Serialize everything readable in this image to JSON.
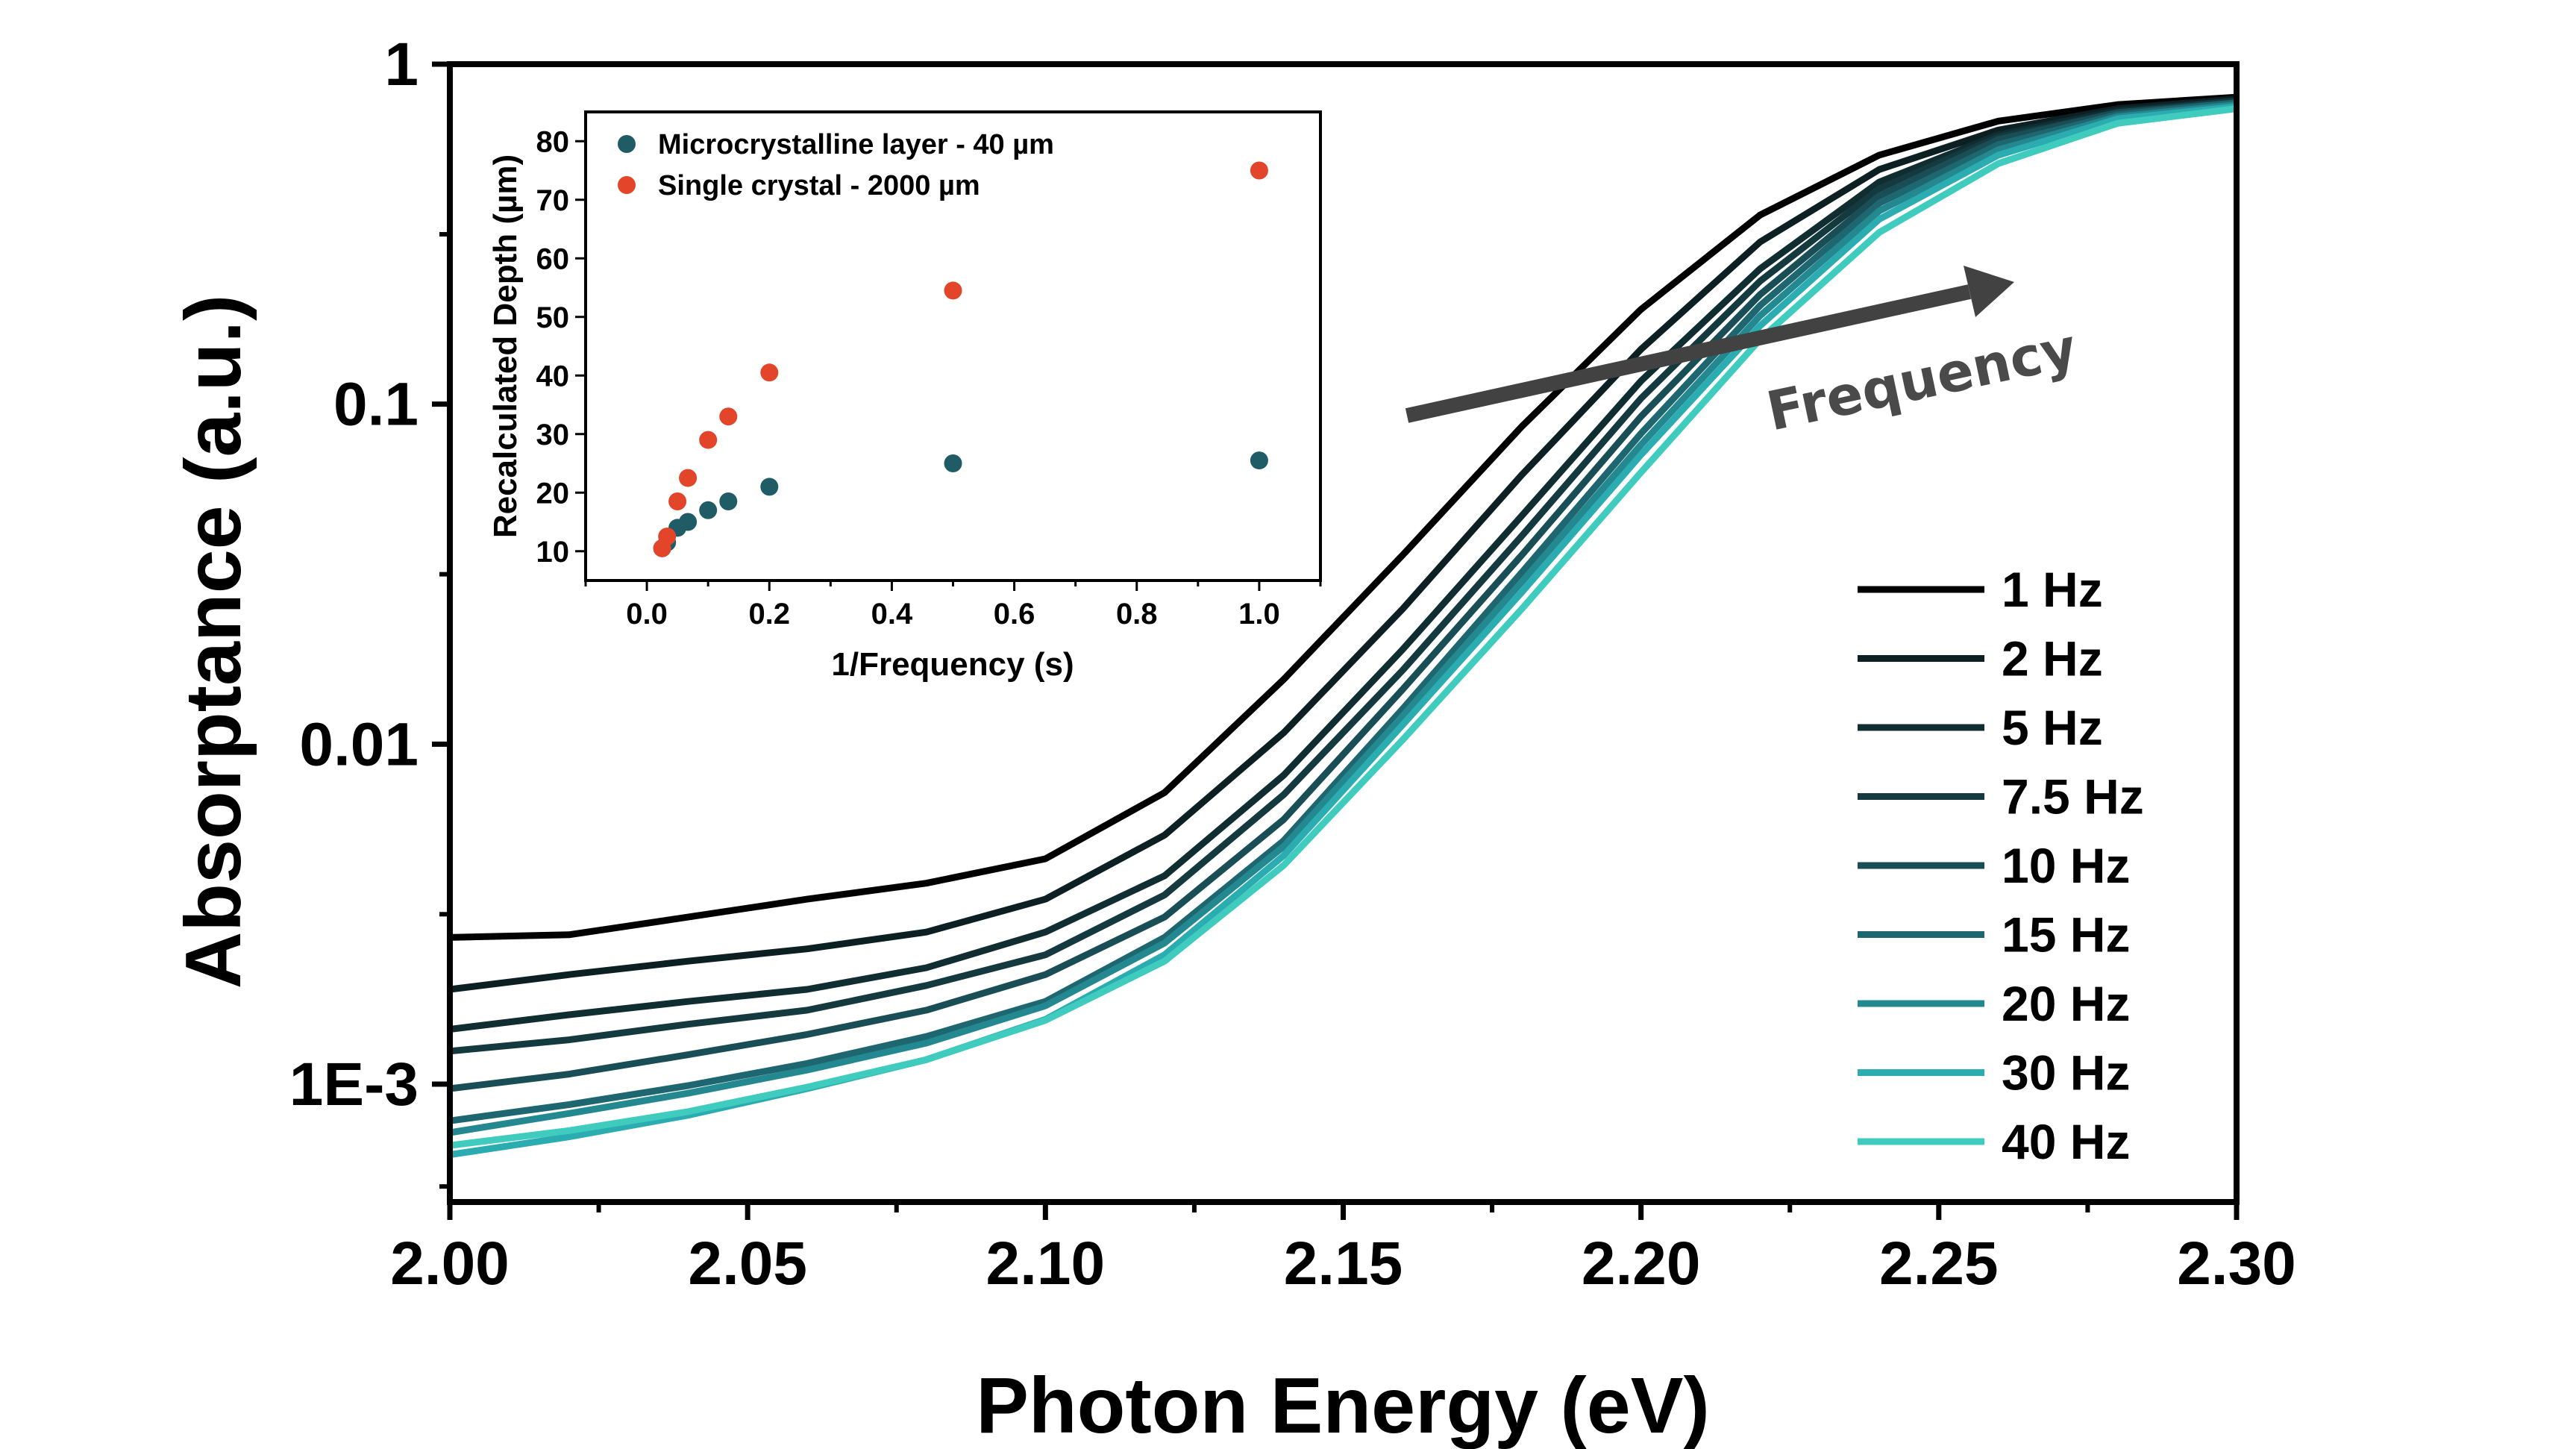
{
  "chart_data": [
    {
      "type": "line",
      "xlabel": "Photon Energy (eV)",
      "ylabel": "Absorptance (a.u.)",
      "xlim": [
        2.0,
        2.3
      ],
      "ylim": [
        0.00045,
        1.0
      ],
      "yscale": "log",
      "x_ticks": [
        2.0,
        2.05,
        2.1,
        2.15,
        2.2,
        2.25,
        2.3
      ],
      "x_tick_labels": [
        "2.00",
        "2.05",
        "2.10",
        "2.15",
        "2.20",
        "2.25",
        "2.30"
      ],
      "y_ticks": [
        0.001,
        0.01,
        0.1,
        1
      ],
      "y_tick_labels": [
        "1E-3",
        "0.01",
        "0.1",
        "1"
      ],
      "legend_position": "bottom-right",
      "annotation": "Frequency",
      "x": [
        2.0,
        2.02,
        2.04,
        2.06,
        2.08,
        2.1,
        2.12,
        2.14,
        2.16,
        2.18,
        2.2,
        2.22,
        2.24,
        2.26,
        2.28,
        2.3
      ],
      "series": [
        {
          "name": "1 Hz",
          "color": "#000000",
          "values": [
            0.0027,
            0.00275,
            0.0031,
            0.0035,
            0.0039,
            0.0046,
            0.0072,
            0.0155,
            0.036,
            0.086,
            0.19,
            0.36,
            0.54,
            0.68,
            0.76,
            0.8
          ]
        },
        {
          "name": "2 Hz",
          "color": "#0c1f22",
          "values": [
            0.0019,
            0.0021,
            0.0023,
            0.0025,
            0.0028,
            0.0035,
            0.0054,
            0.0108,
            0.025,
            0.062,
            0.145,
            0.3,
            0.49,
            0.64,
            0.74,
            0.79
          ]
        },
        {
          "name": "5 Hz",
          "color": "#102d31",
          "values": [
            0.00145,
            0.0016,
            0.00175,
            0.0019,
            0.0022,
            0.0028,
            0.0041,
            0.0081,
            0.019,
            0.047,
            0.117,
            0.25,
            0.45,
            0.62,
            0.73,
            0.78
          ]
        },
        {
          "name": "7.5 Hz",
          "color": "#143a40",
          "values": [
            0.00125,
            0.00135,
            0.0015,
            0.00165,
            0.00195,
            0.0024,
            0.0036,
            0.0071,
            0.0165,
            0.041,
            0.104,
            0.23,
            0.43,
            0.61,
            0.72,
            0.78
          ]
        },
        {
          "name": "10 Hz",
          "color": "#1a4e56",
          "values": [
            0.00097,
            0.00107,
            0.00122,
            0.0014,
            0.00165,
            0.0021,
            0.0031,
            0.006,
            0.0145,
            0.036,
            0.092,
            0.21,
            0.41,
            0.6,
            0.72,
            0.77
          ]
        },
        {
          "name": "15 Hz",
          "color": "#1f6770",
          "values": [
            0.00078,
            0.00087,
            0.00099,
            0.00115,
            0.00138,
            0.00175,
            0.0027,
            0.0052,
            0.0127,
            0.032,
            0.082,
            0.195,
            0.39,
            0.58,
            0.71,
            0.77
          ]
        },
        {
          "name": "20 Hz",
          "color": "#23888f",
          "values": [
            0.00072,
            0.00082,
            0.00094,
            0.0011,
            0.00132,
            0.0017,
            0.0026,
            0.005,
            0.0121,
            0.03,
            0.076,
            0.182,
            0.37,
            0.56,
            0.7,
            0.76
          ]
        },
        {
          "name": "30 Hz",
          "color": "#2aacb0",
          "values": [
            0.00062,
            0.0007,
            0.00081,
            0.00097,
            0.00118,
            0.00155,
            0.0024,
            0.0047,
            0.0114,
            0.028,
            0.071,
            0.17,
            0.35,
            0.54,
            0.69,
            0.75
          ]
        },
        {
          "name": "40 Hz",
          "color": "#40cbbf",
          "values": [
            0.00066,
            0.00073,
            0.00083,
            0.00098,
            0.00118,
            0.00154,
            0.0023,
            0.0044,
            0.0103,
            0.025,
            0.063,
            0.155,
            0.32,
            0.51,
            0.67,
            0.74
          ]
        }
      ]
    },
    {
      "type": "scatter",
      "xlabel": "1/Frequency (s)",
      "ylabel": "Recalculated Depth (µm)",
      "xlim": [
        -0.1,
        1.1
      ],
      "ylim": [
        5,
        85
      ],
      "x_ticks": [
        0.0,
        0.2,
        0.4,
        0.6,
        0.8,
        1.0
      ],
      "x_tick_labels": [
        "0.0",
        "0.2",
        "0.4",
        "0.6",
        "0.8",
        "1.0"
      ],
      "y_ticks": [
        10,
        20,
        30,
        40,
        50,
        60,
        70,
        80
      ],
      "y_tick_labels": [
        "10",
        "20",
        "30",
        "40",
        "50",
        "60",
        "70",
        "80"
      ],
      "legend_position": "top-left",
      "series": [
        {
          "name": "Microcrystalline layer - 40 µm",
          "color": "#1f5c66",
          "x": [
            0.025,
            0.033,
            0.05,
            0.067,
            0.1,
            0.133,
            0.2,
            0.5,
            1.0
          ],
          "values": [
            10.5,
            11.5,
            14.0,
            15.0,
            17.0,
            18.5,
            21.0,
            25.0,
            25.5
          ]
        },
        {
          "name": "Single crystal - 2000 µm",
          "color": "#e2452a",
          "x": [
            0.025,
            0.033,
            0.05,
            0.067,
            0.1,
            0.133,
            0.2,
            0.5,
            1.0
          ],
          "values": [
            10.5,
            12.5,
            18.5,
            22.5,
            29.0,
            33.0,
            40.5,
            54.5,
            75.0
          ]
        }
      ]
    }
  ]
}
